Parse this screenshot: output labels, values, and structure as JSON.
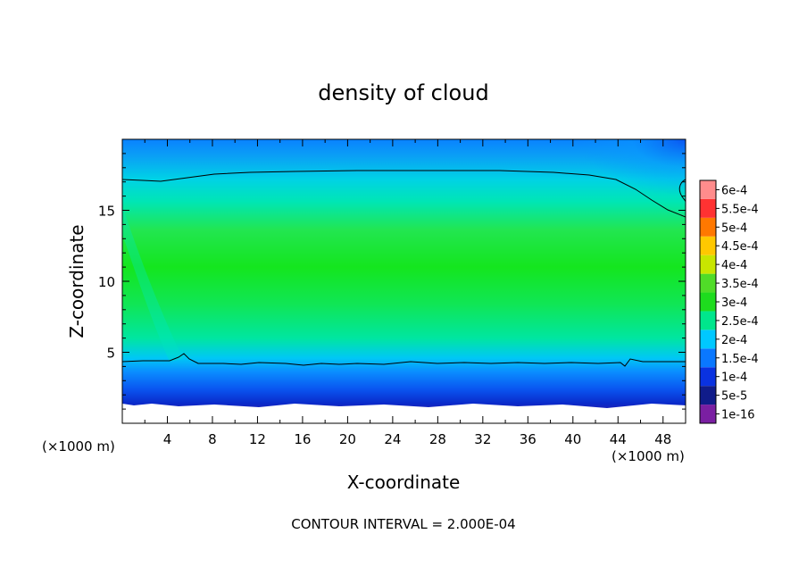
{
  "chart_data": {
    "type": "heatmap",
    "title": "density of cloud",
    "xlabel": "X-coordinate",
    "ylabel": "Z-coordinate",
    "x_unit_left": "(×1000 m)",
    "x_unit_right": "(×1000 m)",
    "xlim": [
      0,
      50
    ],
    "ylim": [
      0,
      20
    ],
    "x_ticks": [
      4,
      8,
      12,
      16,
      20,
      24,
      28,
      32,
      36,
      40,
      44,
      48
    ],
    "y_ticks": [
      5,
      10,
      15
    ],
    "footer": "CONTOUR INTERVAL = 2.000E-04",
    "colorbar": {
      "labels": [
        "1e-16",
        "5e-5",
        "1e-4",
        "1.5e-4",
        "2e-4",
        "2.5e-4",
        "3e-4",
        "3.5e-4",
        "4e-4",
        "4.5e-4",
        "5e-4",
        "5.5e-4",
        "6e-4"
      ],
      "colors": [
        "#7a1fa2",
        "#101c8a",
        "#0a32e0",
        "#0a78ff",
        "#00c8ff",
        "#00e68c",
        "#1edc1e",
        "#50dc28",
        "#c8e600",
        "#ffc800",
        "#ff7800",
        "#ff3232",
        "#ff8c8c"
      ]
    },
    "contour_levels": [
      0.0002
    ],
    "profile": [
      {
        "z": 1.5,
        "value": 2e-05
      },
      {
        "z": 2.0,
        "value": 6e-05
      },
      {
        "z": 2.6,
        "value": 0.0001
      },
      {
        "z": 3.4,
        "value": 0.00014
      },
      {
        "z": 4.3,
        "value": 0.0002
      },
      {
        "z": 6.5,
        "value": 0.00026
      },
      {
        "z": 10.0,
        "value": 0.00029
      },
      {
        "z": 13.5,
        "value": 0.00027
      },
      {
        "z": 17.6,
        "value": 0.0002
      },
      {
        "z": 19.0,
        "value": 0.00016
      }
    ]
  }
}
